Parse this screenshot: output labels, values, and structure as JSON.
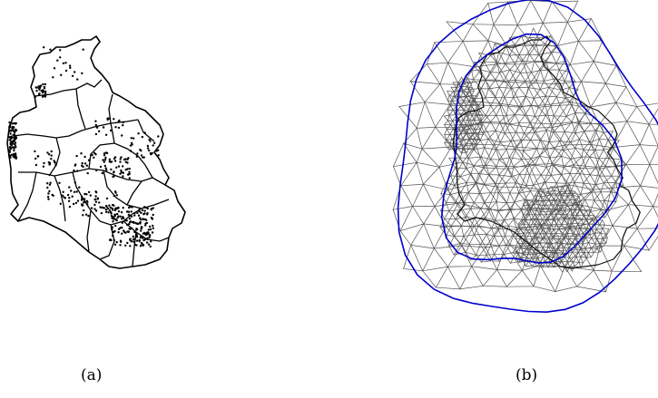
{
  "figure": {
    "panels": [
      {
        "id": "a",
        "caption": "(a)"
      },
      {
        "id": "b",
        "caption": "(b)"
      }
    ]
  },
  "colors": {
    "background": "#ffffff",
    "map_lines": "#000000",
    "points": "#000000",
    "mesh_edges": "#555555",
    "mesh_boundary": "#0000cc"
  }
}
